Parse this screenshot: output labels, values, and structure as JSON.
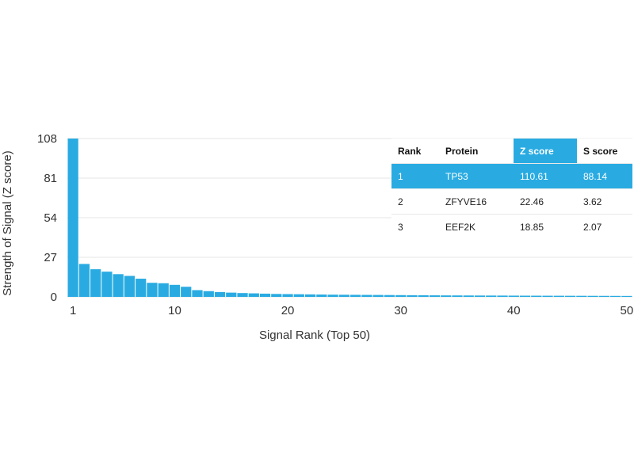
{
  "chart_data": {
    "type": "bar",
    "xlabel": "Signal Rank (Top 50)",
    "ylabel": "Strength of Signal (Z score)",
    "ylim": [
      0,
      108
    ],
    "yticks": [
      0,
      27,
      54,
      81,
      108
    ],
    "xlim": [
      1,
      50
    ],
    "xticks": [
      1,
      10,
      20,
      30,
      40,
      50
    ],
    "grid": true,
    "x": [
      1,
      2,
      3,
      4,
      5,
      6,
      7,
      8,
      9,
      10,
      11,
      12,
      13,
      14,
      15,
      16,
      17,
      18,
      19,
      20,
      21,
      22,
      23,
      24,
      25,
      26,
      27,
      28,
      29,
      30,
      31,
      32,
      33,
      34,
      35,
      36,
      37,
      38,
      39,
      40,
      41,
      42,
      43,
      44,
      45,
      46,
      47,
      48,
      49,
      50
    ],
    "values": [
      110.61,
      22.46,
      18.85,
      17.2,
      15.5,
      14.3,
      12.4,
      9.6,
      9.3,
      8.2,
      6.9,
      4.6,
      3.9,
      3.3,
      2.9,
      2.6,
      2.4,
      2.2,
      2.0,
      1.9,
      1.8,
      1.7,
      1.6,
      1.5,
      1.45,
      1.4,
      1.35,
      1.3,
      1.25,
      1.2,
      1.15,
      1.1,
      1.05,
      1.0,
      0.98,
      0.95,
      0.92,
      0.9,
      0.88,
      0.85,
      0.82,
      0.8,
      0.78,
      0.76,
      0.74,
      0.72,
      0.7,
      0.68,
      0.66,
      0.64
    ]
  },
  "table": {
    "headers": [
      "Rank",
      "Protein",
      "Z score",
      "S score"
    ],
    "rows": [
      {
        "rank": "1",
        "protein": "TP53",
        "z": "110.61",
        "s": "88.14"
      },
      {
        "rank": "2",
        "protein": "ZFYVE16",
        "z": "22.46",
        "s": "3.62"
      },
      {
        "rank": "3",
        "protein": "EEF2K",
        "z": "18.85",
        "s": "2.07"
      }
    ]
  },
  "colors": {
    "bar": "#29abe2",
    "highlight": "#29abe2"
  }
}
